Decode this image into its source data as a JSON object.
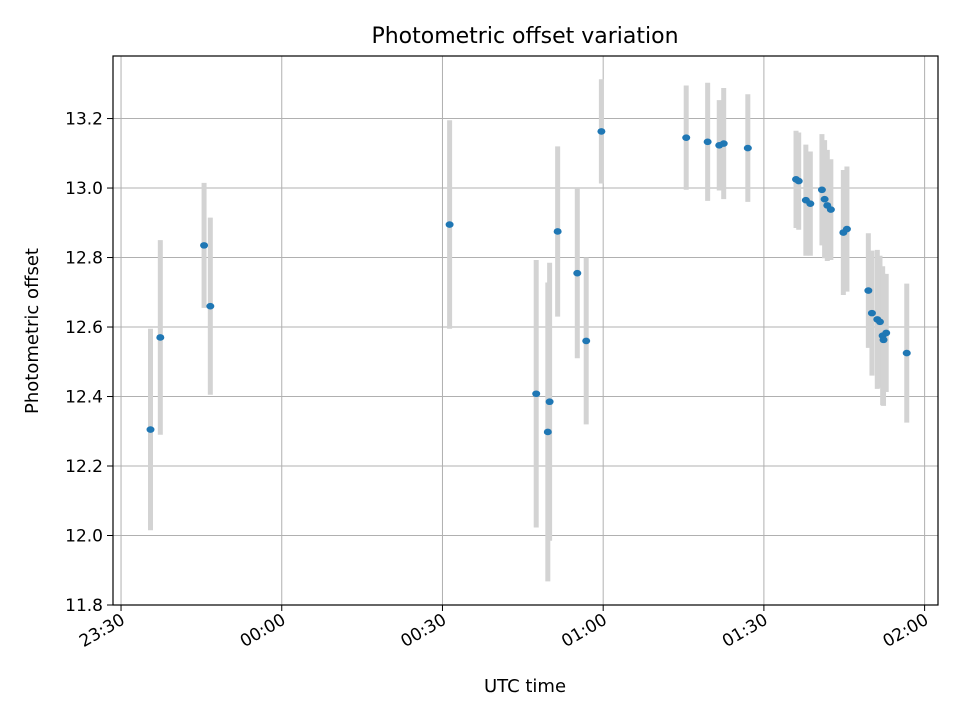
{
  "chart_data": {
    "type": "scatter",
    "title": "Photometric offset variation",
    "xlabel": "UTC time",
    "ylabel": "Photometric offset",
    "x_axis_kind": "time",
    "xlim": [
      "23:28:30",
      "02:02:30"
    ],
    "ylim": [
      11.8,
      13.38
    ],
    "x_ticks": [
      "23:30",
      "00:00",
      "00:30",
      "01:00",
      "01:30",
      "02:00"
    ],
    "y_ticks": [
      "11.8",
      "12.0",
      "12.2",
      "12.4",
      "12.6",
      "12.8",
      "13.0",
      "13.2"
    ],
    "grid": true,
    "colors": {
      "points": "#1f77b4",
      "error_bars": "#d3d3d3",
      "grid": "#b0b0b0"
    },
    "series": [
      {
        "points": [
          {
            "t": "23:35:30",
            "y": 12.305,
            "err": 0.29
          },
          {
            "t": "23:37:20",
            "y": 12.57,
            "err": 0.28
          },
          {
            "t": "23:45:30",
            "y": 12.835,
            "err": 0.18
          },
          {
            "t": "23:46:40",
            "y": 12.66,
            "err": 0.255
          },
          {
            "t": "00:31:20",
            "y": 12.895,
            "err": 0.3
          },
          {
            "t": "00:47:30",
            "y": 12.408,
            "err": 0.385
          },
          {
            "t": "00:49:40",
            "y": 12.298,
            "err": 0.43
          },
          {
            "t": "00:50:00",
            "y": 12.385,
            "err": 0.4
          },
          {
            "t": "00:51:30",
            "y": 12.875,
            "err": 0.245
          },
          {
            "t": "00:55:10",
            "y": 12.755,
            "err": 0.245
          },
          {
            "t": "00:56:50",
            "y": 12.56,
            "err": 0.24
          },
          {
            "t": "00:59:40",
            "y": 13.163,
            "err": 0.15
          },
          {
            "t": "01:15:30",
            "y": 13.145,
            "err": 0.15
          },
          {
            "t": "01:19:30",
            "y": 13.133,
            "err": 0.17
          },
          {
            "t": "01:21:40",
            "y": 13.123,
            "err": 0.13
          },
          {
            "t": "01:22:30",
            "y": 13.128,
            "err": 0.16
          },
          {
            "t": "01:27:00",
            "y": 13.115,
            "err": 0.155
          },
          {
            "t": "01:36:00",
            "y": 13.025,
            "err": 0.14
          },
          {
            "t": "01:36:30",
            "y": 13.02,
            "err": 0.14
          },
          {
            "t": "01:37:50",
            "y": 12.965,
            "err": 0.16
          },
          {
            "t": "01:38:40",
            "y": 12.955,
            "err": 0.15
          },
          {
            "t": "01:40:50",
            "y": 12.995,
            "err": 0.16
          },
          {
            "t": "01:41:20",
            "y": 12.968,
            "err": 0.17
          },
          {
            "t": "01:41:50",
            "y": 12.95,
            "err": 0.16
          },
          {
            "t": "01:42:30",
            "y": 12.938,
            "err": 0.145
          },
          {
            "t": "01:44:50",
            "y": 12.872,
            "err": 0.18
          },
          {
            "t": "01:45:30",
            "y": 12.882,
            "err": 0.18
          },
          {
            "t": "01:49:30",
            "y": 12.705,
            "err": 0.165
          },
          {
            "t": "01:50:10",
            "y": 12.64,
            "err": 0.18
          },
          {
            "t": "01:51:10",
            "y": 12.622,
            "err": 0.2
          },
          {
            "t": "01:51:40",
            "y": 12.615,
            "err": 0.19
          },
          {
            "t": "01:52:10",
            "y": 12.575,
            "err": 0.2
          },
          {
            "t": "01:52:20",
            "y": 12.563,
            "err": 0.19
          },
          {
            "t": "01:52:50",
            "y": 12.583,
            "err": 0.17
          },
          {
            "t": "01:56:40",
            "y": 12.525,
            "err": 0.2
          }
        ]
      }
    ]
  }
}
